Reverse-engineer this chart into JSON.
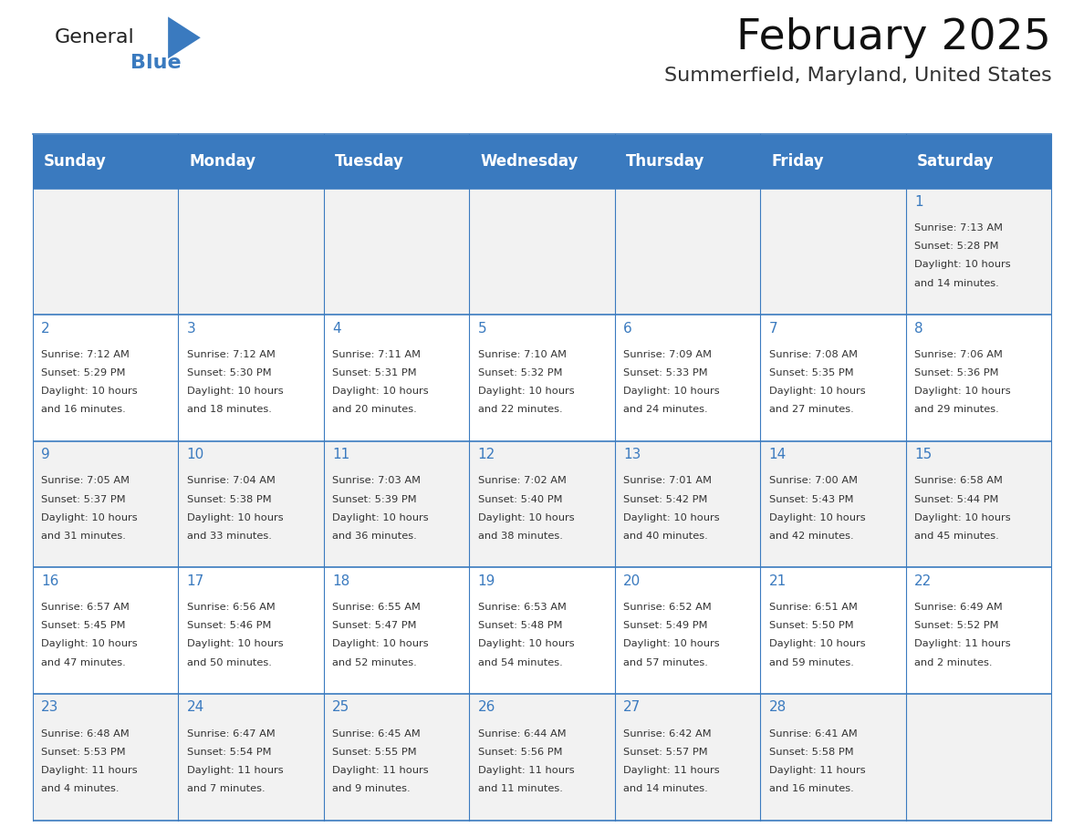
{
  "title": "February 2025",
  "subtitle": "Summerfield, Maryland, United States",
  "header_bg": "#3a7abf",
  "header_text_color": "#ffffff",
  "cell_bg_odd": "#f2f2f2",
  "cell_bg_even": "#ffffff",
  "border_color": "#3a7abf",
  "day_number_color": "#3a7abf",
  "text_color": "#333333",
  "days_of_week": [
    "Sunday",
    "Monday",
    "Tuesday",
    "Wednesday",
    "Thursday",
    "Friday",
    "Saturday"
  ],
  "logo_text1": "General",
  "logo_text2": "Blue",
  "logo_triangle_color": "#3a7abf",
  "calendar": [
    [
      {
        "day": "",
        "sunrise": "",
        "sunset": "",
        "daylight": ""
      },
      {
        "day": "",
        "sunrise": "",
        "sunset": "",
        "daylight": ""
      },
      {
        "day": "",
        "sunrise": "",
        "sunset": "",
        "daylight": ""
      },
      {
        "day": "",
        "sunrise": "",
        "sunset": "",
        "daylight": ""
      },
      {
        "day": "",
        "sunrise": "",
        "sunset": "",
        "daylight": ""
      },
      {
        "day": "",
        "sunrise": "",
        "sunset": "",
        "daylight": ""
      },
      {
        "day": "1",
        "sunrise": "7:13 AM",
        "sunset": "5:28 PM",
        "daylight": "10 hours\nand 14 minutes."
      }
    ],
    [
      {
        "day": "2",
        "sunrise": "7:12 AM",
        "sunset": "5:29 PM",
        "daylight": "10 hours\nand 16 minutes."
      },
      {
        "day": "3",
        "sunrise": "7:12 AM",
        "sunset": "5:30 PM",
        "daylight": "10 hours\nand 18 minutes."
      },
      {
        "day": "4",
        "sunrise": "7:11 AM",
        "sunset": "5:31 PM",
        "daylight": "10 hours\nand 20 minutes."
      },
      {
        "day": "5",
        "sunrise": "7:10 AM",
        "sunset": "5:32 PM",
        "daylight": "10 hours\nand 22 minutes."
      },
      {
        "day": "6",
        "sunrise": "7:09 AM",
        "sunset": "5:33 PM",
        "daylight": "10 hours\nand 24 minutes."
      },
      {
        "day": "7",
        "sunrise": "7:08 AM",
        "sunset": "5:35 PM",
        "daylight": "10 hours\nand 27 minutes."
      },
      {
        "day": "8",
        "sunrise": "7:06 AM",
        "sunset": "5:36 PM",
        "daylight": "10 hours\nand 29 minutes."
      }
    ],
    [
      {
        "day": "9",
        "sunrise": "7:05 AM",
        "sunset": "5:37 PM",
        "daylight": "10 hours\nand 31 minutes."
      },
      {
        "day": "10",
        "sunrise": "7:04 AM",
        "sunset": "5:38 PM",
        "daylight": "10 hours\nand 33 minutes."
      },
      {
        "day": "11",
        "sunrise": "7:03 AM",
        "sunset": "5:39 PM",
        "daylight": "10 hours\nand 36 minutes."
      },
      {
        "day": "12",
        "sunrise": "7:02 AM",
        "sunset": "5:40 PM",
        "daylight": "10 hours\nand 38 minutes."
      },
      {
        "day": "13",
        "sunrise": "7:01 AM",
        "sunset": "5:42 PM",
        "daylight": "10 hours\nand 40 minutes."
      },
      {
        "day": "14",
        "sunrise": "7:00 AM",
        "sunset": "5:43 PM",
        "daylight": "10 hours\nand 42 minutes."
      },
      {
        "day": "15",
        "sunrise": "6:58 AM",
        "sunset": "5:44 PM",
        "daylight": "10 hours\nand 45 minutes."
      }
    ],
    [
      {
        "day": "16",
        "sunrise": "6:57 AM",
        "sunset": "5:45 PM",
        "daylight": "10 hours\nand 47 minutes."
      },
      {
        "day": "17",
        "sunrise": "6:56 AM",
        "sunset": "5:46 PM",
        "daylight": "10 hours\nand 50 minutes."
      },
      {
        "day": "18",
        "sunrise": "6:55 AM",
        "sunset": "5:47 PM",
        "daylight": "10 hours\nand 52 minutes."
      },
      {
        "day": "19",
        "sunrise": "6:53 AM",
        "sunset": "5:48 PM",
        "daylight": "10 hours\nand 54 minutes."
      },
      {
        "day": "20",
        "sunrise": "6:52 AM",
        "sunset": "5:49 PM",
        "daylight": "10 hours\nand 57 minutes."
      },
      {
        "day": "21",
        "sunrise": "6:51 AM",
        "sunset": "5:50 PM",
        "daylight": "10 hours\nand 59 minutes."
      },
      {
        "day": "22",
        "sunrise": "6:49 AM",
        "sunset": "5:52 PM",
        "daylight": "11 hours\nand 2 minutes."
      }
    ],
    [
      {
        "day": "23",
        "sunrise": "6:48 AM",
        "sunset": "5:53 PM",
        "daylight": "11 hours\nand 4 minutes."
      },
      {
        "day": "24",
        "sunrise": "6:47 AM",
        "sunset": "5:54 PM",
        "daylight": "11 hours\nand 7 minutes."
      },
      {
        "day": "25",
        "sunrise": "6:45 AM",
        "sunset": "5:55 PM",
        "daylight": "11 hours\nand 9 minutes."
      },
      {
        "day": "26",
        "sunrise": "6:44 AM",
        "sunset": "5:56 PM",
        "daylight": "11 hours\nand 11 minutes."
      },
      {
        "day": "27",
        "sunrise": "6:42 AM",
        "sunset": "5:57 PM",
        "daylight": "11 hours\nand 14 minutes."
      },
      {
        "day": "28",
        "sunrise": "6:41 AM",
        "sunset": "5:58 PM",
        "daylight": "11 hours\nand 16 minutes."
      },
      {
        "day": "",
        "sunrise": "",
        "sunset": "",
        "daylight": ""
      }
    ]
  ]
}
